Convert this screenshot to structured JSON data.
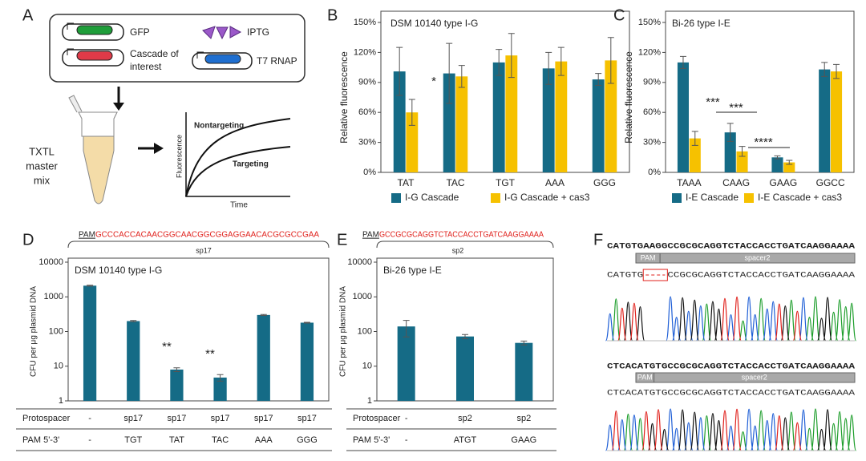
{
  "panel_a": {
    "label": "A",
    "gfp": "GFP",
    "cascade": [
      "Cascade of",
      "interest"
    ],
    "iptg": "IPTG",
    "t7": "T7 RNAP",
    "tube": [
      "TXTL",
      "master",
      "mix"
    ],
    "curve_y": "Fluorescence",
    "curve_x": "Time",
    "nontargeting": "Nontargeting",
    "targeting": "Targeting"
  },
  "chart_data": [
    {
      "type": "bar",
      "label": "B",
      "title": "DSM 10140 type I-G",
      "y_label": "Relative fluorescence",
      "categories": [
        "TAT",
        "TAC",
        "TGT",
        "AAA",
        "GGG"
      ],
      "series": [
        {
          "name": "I-G Cascade",
          "color": "#156b86",
          "values": [
            101,
            99,
            110,
            104,
            93
          ],
          "errors": [
            24,
            30,
            13,
            16,
            6
          ]
        },
        {
          "name": "I-G Cascade + cas3",
          "color": "#f6c100",
          "values": [
            60,
            96,
            117,
            111,
            112
          ],
          "errors": [
            13,
            11,
            22,
            14,
            23
          ]
        }
      ],
      "ylim": [
        0,
        150
      ],
      "yticks": [
        {
          "value": 0,
          "label": "0%"
        },
        {
          "value": 30,
          "label": "30%"
        },
        {
          "value": 60,
          "label": "60%"
        },
        {
          "value": 90,
          "label": "90%"
        },
        {
          "value": 120,
          "label": "120%"
        },
        {
          "value": 150,
          "label": "150%"
        }
      ],
      "annotations": [
        "*"
      ]
    },
    {
      "type": "bar",
      "label": "C",
      "title": "Bi-26 type I-E",
      "y_label": "Relative fluorescence",
      "categories": [
        "TAAA",
        "CAAG",
        "GAAG",
        "GGCC"
      ],
      "series": [
        {
          "name": "I-E Cascade",
          "color": "#156b86",
          "values": [
            110,
            40,
            15,
            103
          ],
          "errors": [
            6,
            9,
            1.5,
            7
          ]
        },
        {
          "name": "I-E Cascade + cas3",
          "color": "#f6c100",
          "values": [
            34,
            21,
            10,
            101
          ],
          "errors": [
            7,
            5,
            2,
            7
          ]
        }
      ],
      "ylim": [
        0,
        150
      ],
      "yticks": [
        {
          "value": 0,
          "label": "0%"
        },
        {
          "value": 30,
          "label": "30%"
        },
        {
          "value": 60,
          "label": "60%"
        },
        {
          "value": 90,
          "label": "90%"
        },
        {
          "value": 120,
          "label": "120%"
        },
        {
          "value": 150,
          "label": "150%"
        }
      ],
      "annotations": [
        "***",
        "***",
        "****"
      ]
    },
    {
      "type": "bar",
      "label": "D",
      "title": "DSM 10140 type I-G",
      "y_label": "CFU per μg plasmid DNA",
      "log_scale": true,
      "sequence": {
        "pam": "PAM",
        "spacer": "GCCCACCACAACGGCAACGGCGGAGGAACACGCGCCGAA",
        "name": "sp17"
      },
      "series": [
        {
          "color": "#156b86",
          "values": [
            2100,
            200,
            8,
            4.7,
            300,
            180
          ],
          "errors": [
            60,
            8,
            1,
            1,
            10,
            5
          ]
        }
      ],
      "ylim": [
        1,
        10000
      ],
      "yticks": [
        1,
        10,
        100,
        1000,
        10000
      ],
      "annotations": [
        "**",
        "**"
      ],
      "table": [
        [
          "Protospacer",
          "-",
          "sp17",
          "sp17",
          "sp17",
          "sp17",
          "sp17"
        ],
        [
          "PAM 5'-3'",
          "-",
          "TGT",
          "TAT",
          "TAC",
          "AAA",
          "GGG"
        ]
      ]
    },
    {
      "type": "bar",
      "label": "E",
      "title": "Bi-26 type I-E",
      "y_label": "CFU per μg plasmid DNA",
      "log_scale": true,
      "sequence": {
        "pam": "PAM",
        "spacer": "GCCGCGCAGGTCTACCACCTGATCAAGGAAAA",
        "name": "sp2"
      },
      "series": [
        {
          "color": "#156b86",
          "values": [
            140,
            72,
            47
          ],
          "errors": [
            70,
            10,
            6
          ]
        }
      ],
      "ylim": [
        1,
        10000
      ],
      "yticks": [
        1,
        10,
        100,
        1000,
        10000
      ],
      "annotations": [],
      "table": [
        [
          "Protospacer",
          "-",
          "sp2",
          "sp2"
        ],
        [
          "PAM 5'-3'",
          "-",
          "ATGT",
          "GAAG"
        ]
      ]
    }
  ],
  "panel_f": {
    "label": "F",
    "top": {
      "reference": "CATGTGAAGGCCGCGCAGGTCTACCACCTGATCAAGGAAAA",
      "pam": "PAM",
      "spacer": "spacer2",
      "read_left": "CATGTG",
      "read_right": "CCGCGCAGGTCTACCACCTGATCAAGGAAAA"
    },
    "bottom": {
      "reference": "CTCACATGTGCCGCGCAGGTCTACCACCTGATCAAGGAAAA",
      "pam": "PAM",
      "spacer": "spacer2",
      "read": "CTCACATGTGCCGCGCAGGTCTACCACCTGATCAAGGAAAA"
    }
  }
}
